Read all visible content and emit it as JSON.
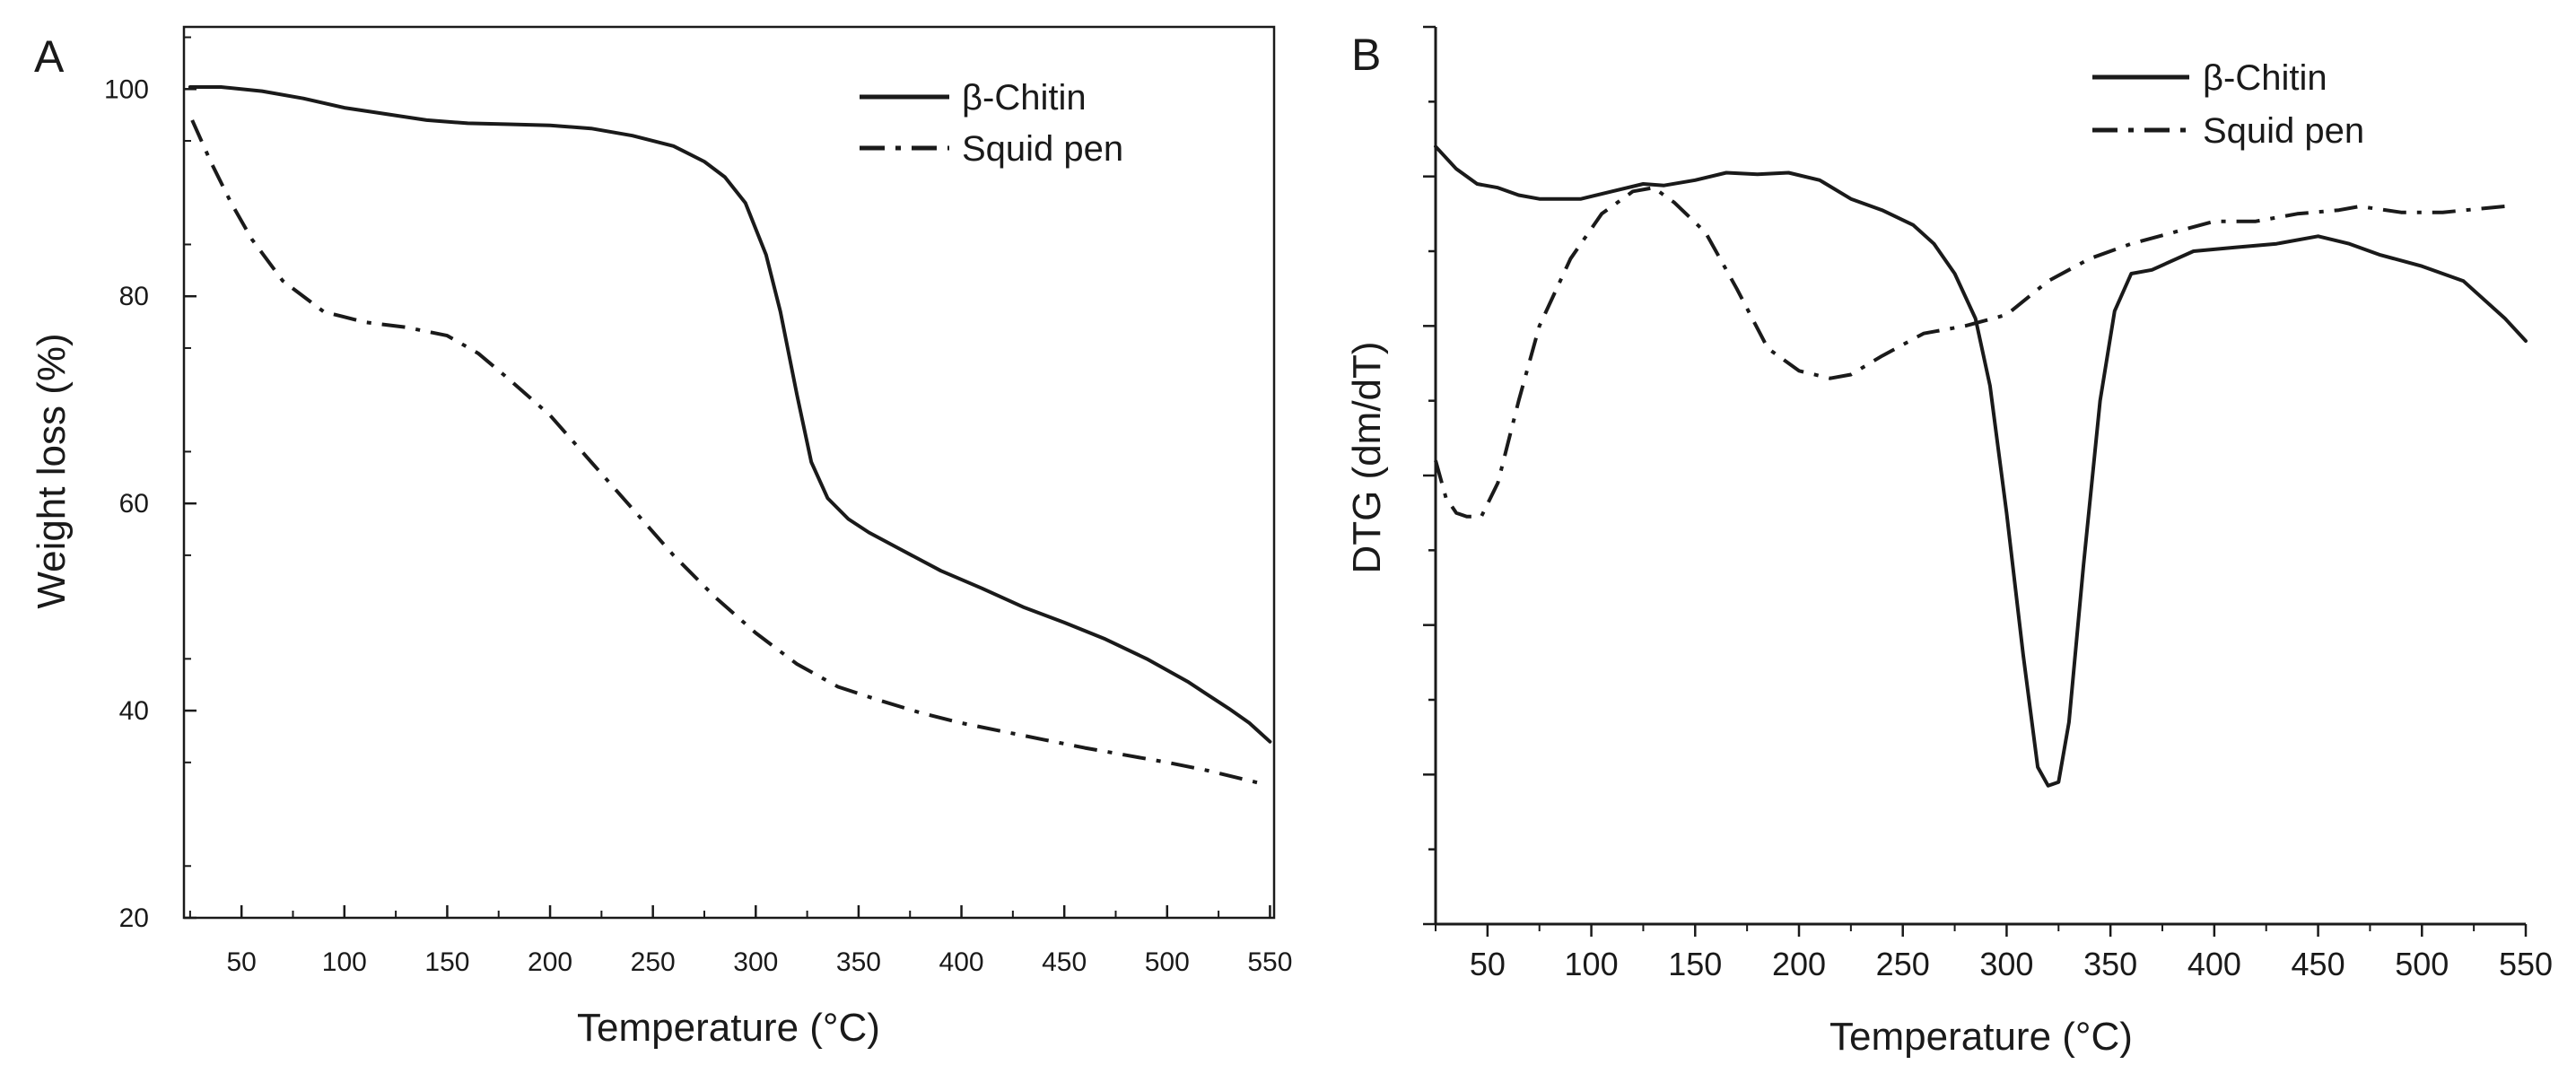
{
  "chart_data": [
    {
      "panel": "A",
      "type": "line",
      "xlabel": "Temperature (°C)",
      "ylabel": "Weight loss (%)",
      "xlim": [
        22,
        552
      ],
      "ylim": [
        20,
        106
      ],
      "xticks": [
        50,
        100,
        150,
        200,
        250,
        300,
        350,
        400,
        450,
        500,
        550
      ],
      "xtick_labels": [
        "50",
        "100",
        "150",
        "200",
        "250",
        "300",
        "350",
        "400",
        "450",
        "500",
        "550"
      ],
      "yticks": [
        20,
        40,
        60,
        80,
        100
      ],
      "ytick_labels": [
        "20",
        "40",
        "60",
        "80",
        "100"
      ],
      "legend": {
        "position": "top-right",
        "entries": [
          "β-Chitin",
          "Squid pen"
        ]
      },
      "series": [
        {
          "name": "β-Chitin",
          "style": "solid",
          "x": [
            25,
            40,
            60,
            80,
            100,
            120,
            140,
            160,
            180,
            200,
            220,
            240,
            260,
            275,
            285,
            295,
            305,
            312,
            320,
            327,
            335,
            345,
            355,
            370,
            390,
            410,
            430,
            450,
            470,
            490,
            510,
            520,
            530,
            540,
            550
          ],
          "y": [
            100.2,
            100.2,
            99.8,
            99.1,
            98.2,
            97.6,
            97.0,
            96.7,
            96.6,
            96.5,
            96.2,
            95.5,
            94.5,
            93.0,
            91.5,
            89.0,
            84.0,
            78.5,
            70.5,
            64.0,
            60.5,
            58.5,
            57.2,
            55.6,
            53.5,
            51.8,
            50.0,
            48.5,
            46.9,
            45.0,
            42.8,
            41.5,
            40.2,
            38.8,
            37.0
          ]
        },
        {
          "name": "Squid pen",
          "style": "dash-dot",
          "x": [
            26,
            35,
            45,
            55,
            70,
            90,
            110,
            130,
            150,
            165,
            180,
            200,
            220,
            240,
            260,
            280,
            300,
            320,
            340,
            360,
            380,
            400,
            420,
            440,
            460,
            480,
            500,
            520,
            545
          ],
          "y": [
            97.0,
            93.0,
            89.0,
            85.5,
            81.5,
            78.5,
            77.5,
            77.0,
            76.2,
            74.5,
            72.0,
            68.5,
            64.0,
            59.5,
            55.0,
            51.0,
            47.5,
            44.5,
            42.3,
            41.0,
            39.8,
            38.8,
            38.0,
            37.2,
            36.4,
            35.7,
            35.0,
            34.2,
            33.0
          ]
        }
      ]
    },
    {
      "panel": "B",
      "type": "line",
      "xlabel": "Temperature (°C)",
      "ylabel": "DTG (dm/dT)",
      "xlim": [
        25,
        550
      ],
      "ylim": [
        0,
        120
      ],
      "xticks": [
        50,
        100,
        150,
        200,
        250,
        300,
        350,
        400,
        450,
        500,
        550
      ],
      "xtick_labels": [
        "50",
        "100",
        "150",
        "200",
        "250",
        "300",
        "350",
        "400",
        "450",
        "500",
        "550"
      ],
      "yticks": [],
      "ytick_labels": [],
      "legend": {
        "position": "top-right",
        "entries": [
          "β-Chitin",
          "Squid pen"
        ]
      },
      "series": [
        {
          "name": "β-Chitin",
          "style": "solid",
          "x": [
            25,
            35,
            45,
            55,
            65,
            75,
            85,
            95,
            110,
            125,
            135,
            150,
            165,
            180,
            195,
            210,
            225,
            240,
            255,
            265,
            275,
            285,
            292,
            300,
            308,
            315,
            320,
            325,
            330,
            337,
            345,
            352,
            360,
            370,
            390,
            410,
            430,
            450,
            465,
            480,
            500,
            520,
            540,
            550
          ],
          "y": [
            104,
            101,
            99,
            98.5,
            97.5,
            97,
            97,
            97,
            98,
            99,
            98.8,
            99.5,
            100.5,
            100.3,
            100.5,
            99.5,
            97,
            95.5,
            93.5,
            91,
            87,
            81,
            72,
            55,
            36,
            21,
            18.5,
            19,
            27,
            48,
            70,
            82,
            87,
            87.5,
            90,
            90.5,
            91,
            92,
            91,
            89.5,
            88,
            86,
            81,
            78
          ]
        },
        {
          "name": "Squid pen",
          "style": "dash-dot",
          "x": [
            25,
            30,
            35,
            40,
            47,
            55,
            65,
            75,
            90,
            105,
            120,
            130,
            140,
            155,
            170,
            185,
            200,
            215,
            225,
            240,
            260,
            280,
            300,
            320,
            340,
            360,
            380,
            400,
            420,
            440,
            460,
            470,
            490,
            510,
            540
          ],
          "y": [
            62,
            57,
            55,
            54.5,
            54.5,
            59,
            70,
            80,
            89,
            95,
            98,
            98.5,
            96.5,
            92.5,
            85,
            77,
            74,
            73,
            73.5,
            76,
            79,
            80,
            81.5,
            86,
            89,
            91,
            92.5,
            94,
            94,
            95,
            95.5,
            96,
            95.2,
            95.2,
            96
          ]
        }
      ]
    }
  ]
}
